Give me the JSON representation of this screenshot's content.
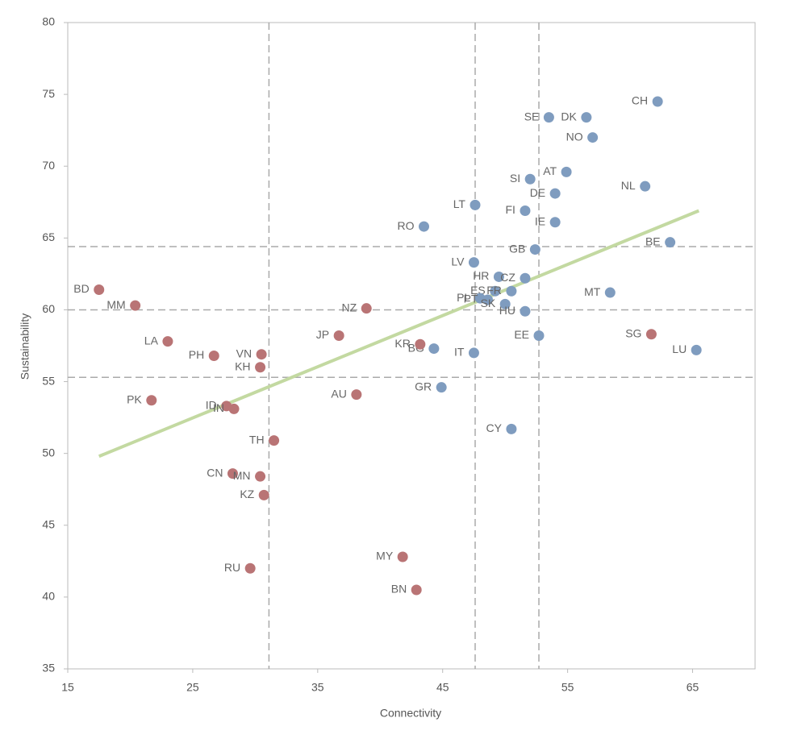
{
  "chart_data": {
    "type": "scatter",
    "x_label": "Connectivity",
    "y_label": "Sustainability",
    "xlim": [
      15,
      70
    ],
    "xticks": [
      15,
      25,
      35,
      45,
      55,
      65
    ],
    "ylim": [
      35,
      80
    ],
    "yticks": [
      35,
      40,
      45,
      50,
      55,
      60,
      65,
      70,
      75,
      80
    ],
    "vlines": [
      31.1,
      47.6,
      52.7
    ],
    "hlines": [
      64.4,
      60.0,
      55.3
    ],
    "trendline": {
      "color": "#c3d9a1",
      "x": [
        17.5,
        65.5
      ],
      "y": [
        49.8,
        66.9
      ]
    },
    "series": [
      {
        "color": "#7f9cbf",
        "labels": [
          "CH",
          "DK",
          "SE",
          "NO",
          "AT",
          "SI",
          "NL",
          "DE",
          "LT",
          "FI",
          "IE",
          "RO",
          "BE",
          "GB",
          "LV",
          "HR",
          "CZ",
          "ES",
          "FR",
          "MT",
          "PL",
          "PT",
          "SK",
          "HU",
          "EE",
          "BG",
          "IT",
          "LU",
          "GR",
          "CY"
        ],
        "x": [
          62.2,
          56.5,
          53.5,
          57.0,
          54.9,
          52.0,
          61.2,
          54.0,
          47.6,
          51.6,
          54.0,
          43.5,
          63.2,
          52.4,
          47.5,
          49.5,
          51.6,
          49.2,
          50.5,
          58.4,
          48.0,
          48.6,
          50.0,
          51.6,
          52.7,
          44.3,
          47.5,
          65.3,
          44.9,
          50.5
        ],
        "y": [
          74.5,
          73.4,
          73.4,
          72.0,
          69.6,
          69.1,
          68.6,
          68.1,
          67.3,
          66.9,
          66.1,
          65.8,
          64.7,
          64.2,
          63.3,
          62.3,
          62.2,
          61.3,
          61.3,
          61.2,
          60.8,
          60.7,
          60.4,
          59.9,
          58.2,
          57.3,
          57.0,
          57.2,
          54.6,
          51.7
        ]
      },
      {
        "color": "#b97475",
        "labels": [
          "BD",
          "MM",
          "NZ",
          "JP",
          "SG",
          "LA",
          "KR",
          "PH",
          "VN",
          "KH",
          "PK",
          "AU",
          "ID",
          "IN",
          "TH",
          "CN",
          "MN",
          "KZ",
          "MY",
          "RU",
          "BN"
        ],
        "x": [
          17.5,
          20.4,
          38.9,
          36.7,
          61.7,
          23.0,
          43.2,
          26.7,
          30.5,
          30.4,
          21.7,
          38.1,
          27.7,
          28.3,
          31.5,
          28.2,
          30.4,
          30.7,
          41.8,
          29.6,
          42.9
        ],
        "y": [
          61.4,
          60.3,
          60.1,
          58.2,
          58.3,
          57.8,
          57.6,
          56.8,
          56.9,
          56.0,
          53.7,
          54.1,
          53.3,
          53.1,
          50.9,
          48.6,
          48.4,
          47.1,
          42.8,
          42.0,
          40.5
        ]
      }
    ]
  }
}
